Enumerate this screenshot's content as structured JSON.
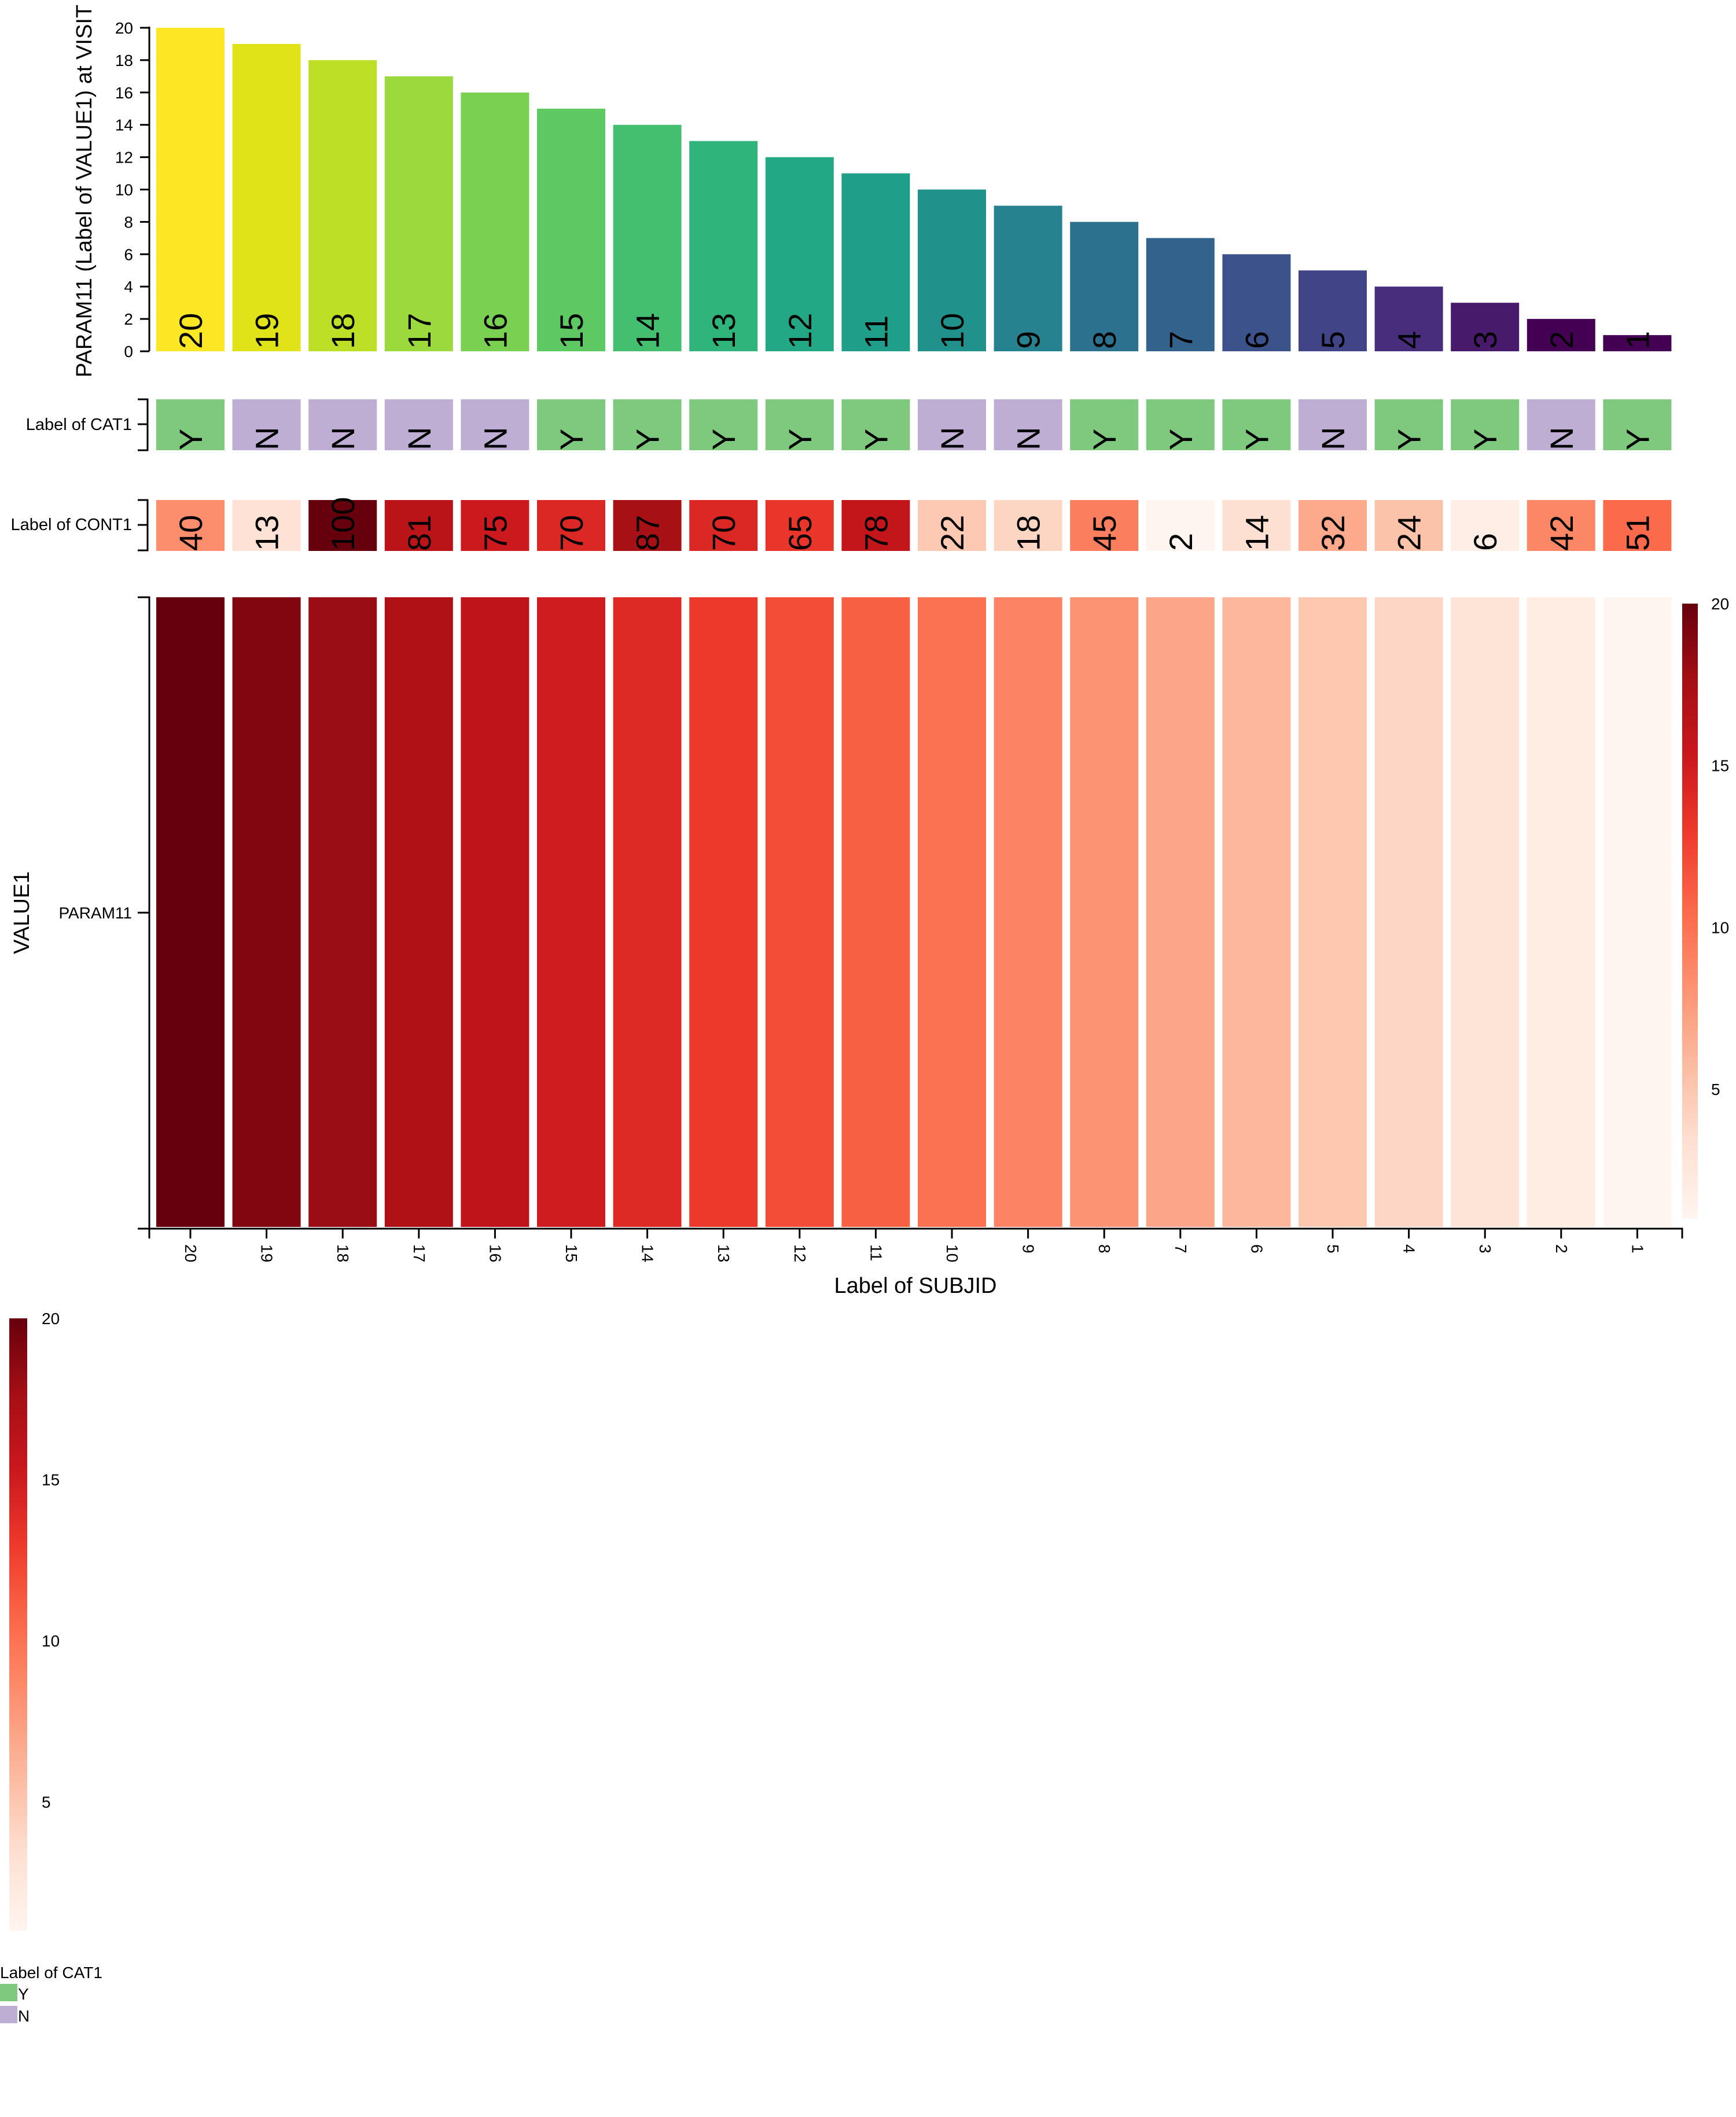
{
  "colors": {
    "cat_Y": "#7fc97f",
    "cat_N": "#beaed4",
    "viridis": [
      "#fde725",
      "#dfe318",
      "#bddf26",
      "#9bd93c",
      "#7ad151",
      "#5ec962",
      "#44bf70",
      "#2fb47c",
      "#22a884",
      "#1f9e89",
      "#21918c",
      "#26828e",
      "#2c728e",
      "#33638d",
      "#3b528b",
      "#414487",
      "#472d7b",
      "#481a6c",
      "#440154"
    ],
    "reds": [
      "#fff5f0",
      "#fee0d2",
      "#fcbba1",
      "#fc9272",
      "#fb6a4a",
      "#ef3b2c",
      "#cb181d",
      "#a50f15",
      "#67000d"
    ]
  },
  "chart_data": {
    "type": "bar+heatmap",
    "subjects": [
      "20",
      "19",
      "18",
      "17",
      "16",
      "15",
      "14",
      "13",
      "12",
      "11",
      "10",
      "9",
      "8",
      "7",
      "6",
      "5",
      "4",
      "3",
      "2",
      "1"
    ],
    "bar": {
      "ylabel": "PARAM11 (Label of VALUE1) at VISIT",
      "values": [
        20,
        19,
        18,
        17,
        16,
        15,
        14,
        13,
        12,
        11,
        10,
        9,
        8,
        7,
        6,
        5,
        4,
        3,
        2,
        1
      ],
      "labels": [
        "20",
        "19",
        "18",
        "17",
        "16",
        "15",
        "14",
        "13",
        "12",
        "11",
        "10",
        "9",
        "8",
        "7",
        "6",
        "5",
        "4",
        "3",
        "2",
        "1"
      ],
      "yticks": [
        "0",
        "2",
        "4",
        "6",
        "8",
        "10",
        "12",
        "14",
        "16",
        "18",
        "20"
      ],
      "ylim": [
        0,
        20
      ]
    },
    "cat_track": {
      "label": "Label of CAT1",
      "values": [
        "Y",
        "N",
        "N",
        "N",
        "N",
        "Y",
        "Y",
        "Y",
        "Y",
        "Y",
        "N",
        "N",
        "Y",
        "Y",
        "Y",
        "N",
        "Y",
        "Y",
        "N",
        "Y"
      ]
    },
    "cont_track": {
      "label": "Label of CONT1",
      "values": [
        40,
        13,
        100,
        81,
        75,
        70,
        87,
        70,
        65,
        78,
        22,
        18,
        45,
        2,
        14,
        32,
        24,
        6,
        42,
        51
      ],
      "labels": [
        "40",
        "13",
        "100",
        "81",
        "75",
        "70",
        "87",
        "70",
        "65",
        "78",
        "22",
        "18",
        "45",
        "2",
        "14",
        "32",
        "24",
        "6",
        "42",
        "51"
      ],
      "range": [
        2,
        100
      ]
    },
    "heatmap": {
      "ylabel": "VALUE1",
      "row": "PARAM11",
      "xlabel": "Label of SUBJID",
      "values": [
        20,
        19,
        18,
        17,
        16,
        15,
        14,
        13,
        12,
        11,
        10,
        9,
        8,
        7,
        6,
        5,
        4,
        3,
        2,
        1
      ],
      "range": [
        1,
        20
      ]
    },
    "colorbar_right": {
      "ticks": [
        "20",
        "15",
        "10",
        "5"
      ],
      "values": [
        20,
        15,
        10,
        5
      ],
      "range": [
        1,
        20
      ]
    },
    "colorbar_bottom": {
      "ticks": [
        "20",
        "15",
        "10",
        "5"
      ],
      "values": [
        20,
        15,
        10,
        5
      ],
      "range": [
        1,
        20
      ]
    },
    "legend": {
      "title": "Label of CAT1",
      "entries": [
        "Y",
        "N"
      ]
    }
  }
}
